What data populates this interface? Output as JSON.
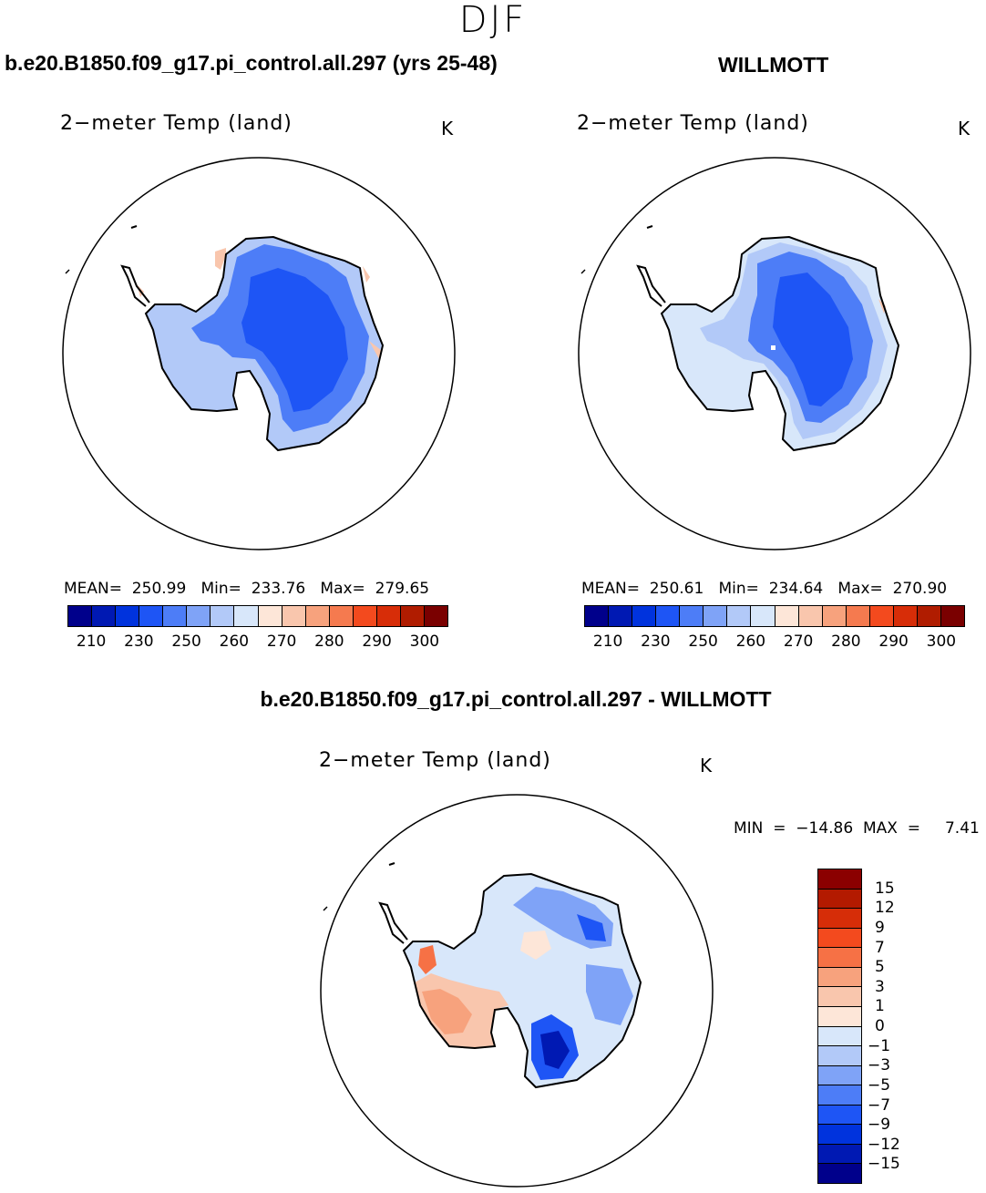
{
  "season": "DJF",
  "panels": [
    {
      "case_title": "b.e20.B1850.f09_g17.pi_control.all.297 (yrs 25-48)",
      "variable": "2−meter Temp (land)",
      "units": "K",
      "stats": "MEAN=  250.99   Min=  233.76   Max=  279.65"
    },
    {
      "case_title": "WILLMOTT",
      "variable": "2−meter Temp (land)",
      "units": "K",
      "stats": "MEAN=  250.61   Min=  234.64   Max=  270.90"
    }
  ],
  "abs_colorbar": {
    "colors": [
      "#00008b",
      "#0019b3",
      "#0033dd",
      "#1e55f5",
      "#4d7df7",
      "#7fa3f7",
      "#b2c9f8",
      "#d8e7fa",
      "#fde6d8",
      "#f9c6ad",
      "#f7a27d",
      "#f57a4f",
      "#f34a1e",
      "#d72d08",
      "#b01c00",
      "#7a0000"
    ],
    "tick_labels": [
      "210",
      "230",
      "250",
      "260",
      "270",
      "280",
      "290",
      "300"
    ]
  },
  "diff_panel": {
    "case_title": "b.e20.B1850.f09_g17.pi_control.all.297 - WILLMOTT",
    "variable": "2−meter Temp (land)",
    "units": "K",
    "minmax": "MIN  =  −14.86  MAX  =     7.41"
  },
  "diff_colorbar": {
    "colors": [
      "#8b0000",
      "#b31a00",
      "#d62d08",
      "#f34a1e",
      "#f67145",
      "#f7a27d",
      "#f9c6ad",
      "#fde6d8",
      "#d8e7fa",
      "#b2c9f8",
      "#7fa3f7",
      "#4d7df7",
      "#1e55f5",
      "#0033dd",
      "#0019b3",
      "#00008b"
    ],
    "tick_labels": [
      "15",
      "12",
      "9",
      "7",
      "5",
      "3",
      "1",
      "0",
      "−1",
      "−3",
      "−5",
      "−7",
      "−9",
      "−12",
      "−15"
    ]
  },
  "map_colors": {
    "coast": "#000000",
    "interior_cold": "#1e55f5",
    "mid": "#4d7df7",
    "edge": "#b2c9f8",
    "warm_fringe": "#f9c6ad",
    "diff_warm": "#f7a27d",
    "diff_cold": "#0019b3"
  }
}
